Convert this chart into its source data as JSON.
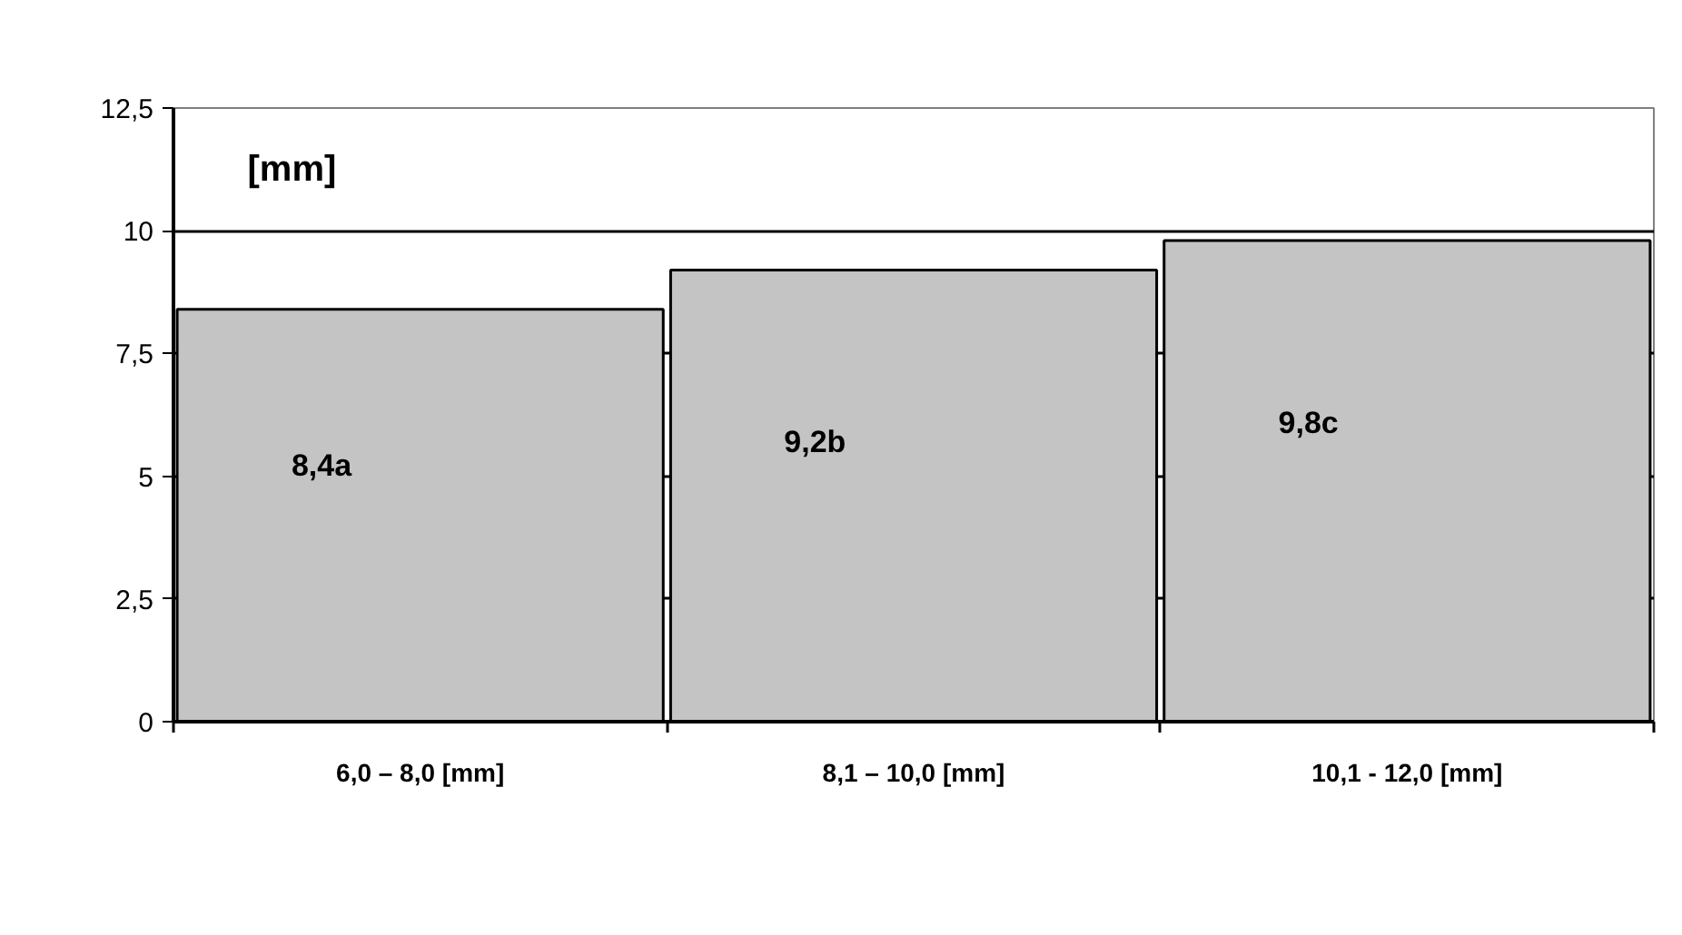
{
  "chart_data": {
    "type": "bar",
    "ylabel": "[mm]",
    "categories": [
      "6,0 – 8,0 [mm]",
      "8,1 – 10,0 [mm]",
      "10,1 - 12,0 [mm]"
    ],
    "values": [
      8.4,
      9.2,
      9.8
    ],
    "value_labels": [
      "8,4a",
      "9,2b",
      "9,8c"
    ],
    "color": "#c4c4c4",
    "ylim": [
      0,
      12.5
    ],
    "yticks": [
      0,
      {
        "value": 2.5,
        "label": "2,5"
      },
      5,
      {
        "value": 7.5,
        "label": "7,5"
      },
      10,
      {
        "value": 12.5,
        "label": "12,5"
      }
    ],
    "grid": "y"
  }
}
